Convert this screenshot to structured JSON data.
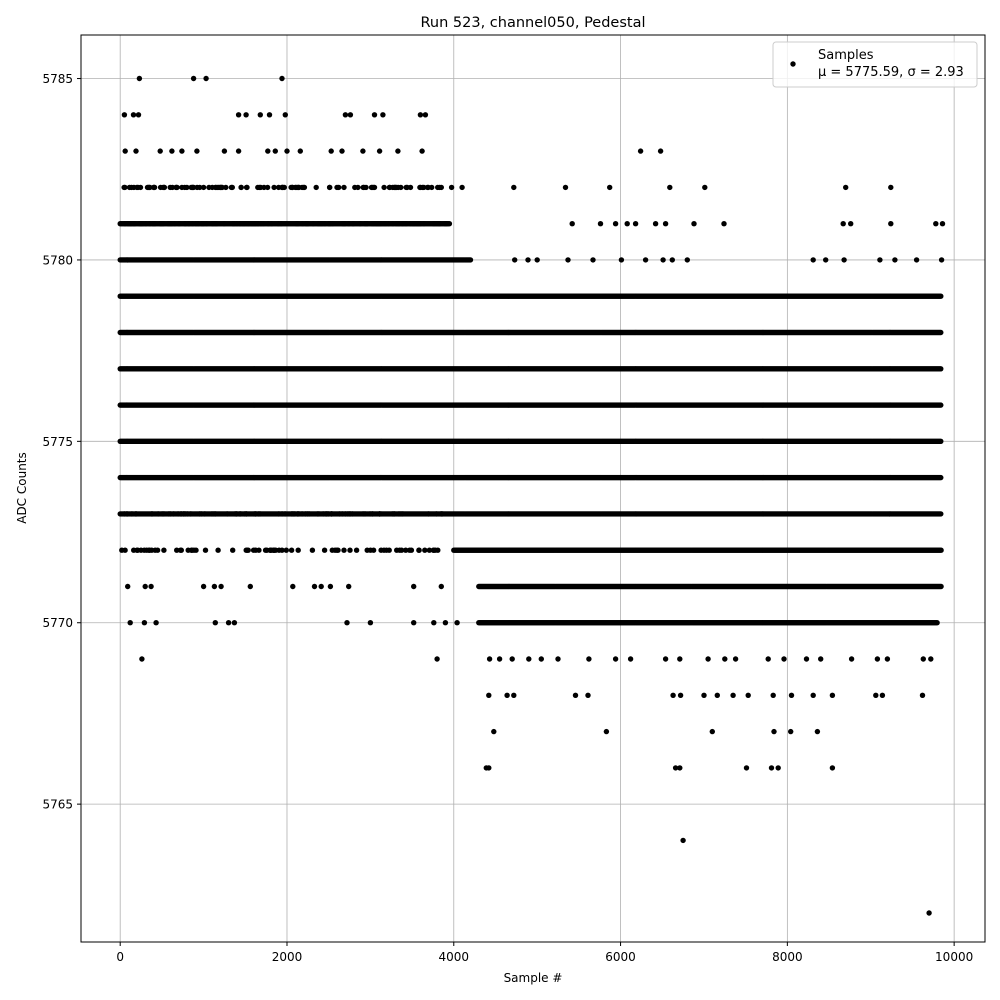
{
  "chart_data": {
    "type": "scatter",
    "title": "Run 523, channel050, Pedestal",
    "xlabel": "Sample #",
    "ylabel": "ADC Counts",
    "xlim": [
      -470,
      10370
    ],
    "ylim": [
      5761.2,
      5786.2
    ],
    "xticks": [
      0,
      2000,
      4000,
      6000,
      8000,
      10000
    ],
    "yticks": [
      5765,
      5770,
      5775,
      5780,
      5785
    ],
    "grid": true,
    "legend_position": "top-right",
    "marker_color": "#000000",
    "n_samples": 9850,
    "series": [
      {
        "name": "Samples",
        "stats_label": "μ = 5775.59, σ = 2.93",
        "dense_bands": [
          {
            "y": 5781,
            "x_range": [
              0,
              3950
            ]
          },
          {
            "y": 5780,
            "x_range": [
              0,
              4200
            ]
          },
          {
            "y": 5779,
            "x_range": [
              0,
              9850
            ]
          },
          {
            "y": 5778,
            "x_range": [
              0,
              9850
            ]
          },
          {
            "y": 5777,
            "x_range": [
              0,
              9850
            ]
          },
          {
            "y": 5776,
            "x_range": [
              0,
              9850
            ]
          },
          {
            "y": 5775,
            "x_range": [
              0,
              9850
            ]
          },
          {
            "y": 5774,
            "x_range": [
              0,
              9850
            ]
          },
          {
            "y": 5773,
            "x_range": [
              0,
              9850
            ]
          },
          {
            "y": 5772,
            "x_range": [
              4000,
              9850
            ]
          },
          {
            "y": 5771,
            "x_range": [
              4300,
              9850
            ]
          },
          {
            "y": 5770,
            "x_range": [
              4300,
              9800
            ]
          }
        ],
        "scattered_points": [
          [
            230,
            5785
          ],
          [
            880,
            5785
          ],
          [
            1030,
            5785
          ],
          [
            1940,
            5785
          ],
          [
            50,
            5784
          ],
          [
            160,
            5784
          ],
          [
            220,
            5784
          ],
          [
            1420,
            5784
          ],
          [
            1510,
            5784
          ],
          [
            1680,
            5784
          ],
          [
            1790,
            5784
          ],
          [
            1980,
            5784
          ],
          [
            2700,
            5784
          ],
          [
            2760,
            5784
          ],
          [
            3050,
            5784
          ],
          [
            3150,
            5784
          ],
          [
            3600,
            5784
          ],
          [
            3660,
            5784
          ],
          [
            60,
            5783
          ],
          [
            190,
            5783
          ],
          [
            480,
            5783
          ],
          [
            620,
            5783
          ],
          [
            740,
            5783
          ],
          [
            920,
            5783
          ],
          [
            1250,
            5783
          ],
          [
            1420,
            5783
          ],
          [
            1770,
            5783
          ],
          [
            1860,
            5783
          ],
          [
            2000,
            5783
          ],
          [
            2160,
            5783
          ],
          [
            2530,
            5783
          ],
          [
            2660,
            5783
          ],
          [
            2910,
            5783
          ],
          [
            3110,
            5783
          ],
          [
            3330,
            5783
          ],
          [
            3620,
            5783
          ],
          [
            6240,
            5783
          ],
          [
            6480,
            5783
          ],
          [
            200,
            5782
          ],
          [
            400,
            5782
          ],
          [
            600,
            5782
          ],
          [
            800,
            5782
          ],
          [
            1000,
            5782
          ],
          [
            1200,
            5782
          ],
          [
            1450,
            5782
          ],
          [
            1650,
            5782
          ],
          [
            1900,
            5782
          ],
          [
            2100,
            5782
          ],
          [
            2350,
            5782
          ],
          [
            2600,
            5782
          ],
          [
            2850,
            5782
          ],
          [
            3050,
            5782
          ],
          [
            3300,
            5782
          ],
          [
            3600,
            5782
          ],
          [
            3850,
            5782
          ],
          [
            4100,
            5782
          ],
          [
            4720,
            5782
          ],
          [
            5340,
            5782
          ],
          [
            5870,
            5782
          ],
          [
            6590,
            5782
          ],
          [
            7010,
            5782
          ],
          [
            8700,
            5782
          ],
          [
            9240,
            5782
          ],
          [
            5420,
            5781
          ],
          [
            5760,
            5781
          ],
          [
            5940,
            5781
          ],
          [
            6080,
            5781
          ],
          [
            6180,
            5781
          ],
          [
            6420,
            5781
          ],
          [
            6540,
            5781
          ],
          [
            6880,
            5781
          ],
          [
            7240,
            5781
          ],
          [
            8670,
            5781
          ],
          [
            8760,
            5781
          ],
          [
            9240,
            5781
          ],
          [
            9780,
            5781
          ],
          [
            9860,
            5781
          ],
          [
            4730,
            5780
          ],
          [
            4890,
            5780
          ],
          [
            5000,
            5780
          ],
          [
            5370,
            5780
          ],
          [
            5670,
            5780
          ],
          [
            6010,
            5780
          ],
          [
            6300,
            5780
          ],
          [
            6510,
            5780
          ],
          [
            6620,
            5780
          ],
          [
            6800,
            5780
          ],
          [
            8310,
            5780
          ],
          [
            8460,
            5780
          ],
          [
            8680,
            5780
          ],
          [
            9110,
            5780
          ],
          [
            9290,
            5780
          ],
          [
            9550,
            5780
          ],
          [
            9850,
            5780
          ],
          [
            4430,
            5769
          ],
          [
            4550,
            5769
          ],
          [
            4700,
            5769
          ],
          [
            4900,
            5769
          ],
          [
            5050,
            5769
          ],
          [
            5250,
            5769
          ],
          [
            5620,
            5769
          ],
          [
            5940,
            5769
          ],
          [
            6120,
            5769
          ],
          [
            6540,
            5769
          ],
          [
            6710,
            5769
          ],
          [
            7050,
            5769
          ],
          [
            7250,
            5769
          ],
          [
            7380,
            5769
          ],
          [
            7770,
            5769
          ],
          [
            7960,
            5769
          ],
          [
            8230,
            5769
          ],
          [
            8400,
            5769
          ],
          [
            8770,
            5769
          ],
          [
            9080,
            5769
          ],
          [
            9200,
            5769
          ],
          [
            9630,
            5769
          ],
          [
            9720,
            5769
          ],
          [
            4420,
            5768
          ],
          [
            4640,
            5768
          ],
          [
            4720,
            5768
          ],
          [
            5460,
            5768
          ],
          [
            5610,
            5768
          ],
          [
            6630,
            5768
          ],
          [
            6720,
            5768
          ],
          [
            7000,
            5768
          ],
          [
            7160,
            5768
          ],
          [
            7350,
            5768
          ],
          [
            7530,
            5768
          ],
          [
            7830,
            5768
          ],
          [
            8050,
            5768
          ],
          [
            8310,
            5768
          ],
          [
            8540,
            5768
          ],
          [
            9060,
            5768
          ],
          [
            9140,
            5768
          ],
          [
            9620,
            5768
          ],
          [
            4480,
            5767
          ],
          [
            5830,
            5767
          ],
          [
            7100,
            5767
          ],
          [
            7840,
            5767
          ],
          [
            8040,
            5767
          ],
          [
            8360,
            5767
          ],
          [
            4390,
            5766
          ],
          [
            4420,
            5766
          ],
          [
            6660,
            5766
          ],
          [
            6710,
            5766
          ],
          [
            7510,
            5766
          ],
          [
            7810,
            5766
          ],
          [
            7890,
            5766
          ],
          [
            8540,
            5766
          ],
          [
            6750,
            5764
          ],
          [
            9700,
            5762
          ],
          [
            260,
            5769
          ],
          [
            3800,
            5769
          ],
          [
            120,
            5770
          ],
          [
            290,
            5770
          ],
          [
            430,
            5770
          ],
          [
            1140,
            5770
          ],
          [
            1300,
            5770
          ],
          [
            1370,
            5770
          ],
          [
            2720,
            5770
          ],
          [
            3000,
            5770
          ],
          [
            3520,
            5770
          ],
          [
            3760,
            5770
          ],
          [
            3900,
            5770
          ],
          [
            4040,
            5770
          ],
          [
            90,
            5771
          ],
          [
            300,
            5771
          ],
          [
            370,
            5771
          ],
          [
            1000,
            5771
          ],
          [
            1130,
            5771
          ],
          [
            1210,
            5771
          ],
          [
            1560,
            5771
          ],
          [
            2070,
            5771
          ],
          [
            2330,
            5771
          ],
          [
            2410,
            5771
          ],
          [
            2520,
            5771
          ],
          [
            2740,
            5771
          ],
          [
            3520,
            5771
          ],
          [
            3850,
            5771
          ]
        ],
        "sparse_bands": [
          {
            "y": 5781,
            "x_range": [
              0,
              3950
            ],
            "count": 140
          },
          {
            "y": 5782,
            "x_range": [
              0,
              4000
            ],
            "count": 95
          },
          {
            "y": 5773,
            "x_range": [
              0,
              3950
            ],
            "count": 90
          },
          {
            "y": 5772,
            "x_range": [
              0,
              3950
            ],
            "count": 75
          }
        ]
      }
    ]
  }
}
